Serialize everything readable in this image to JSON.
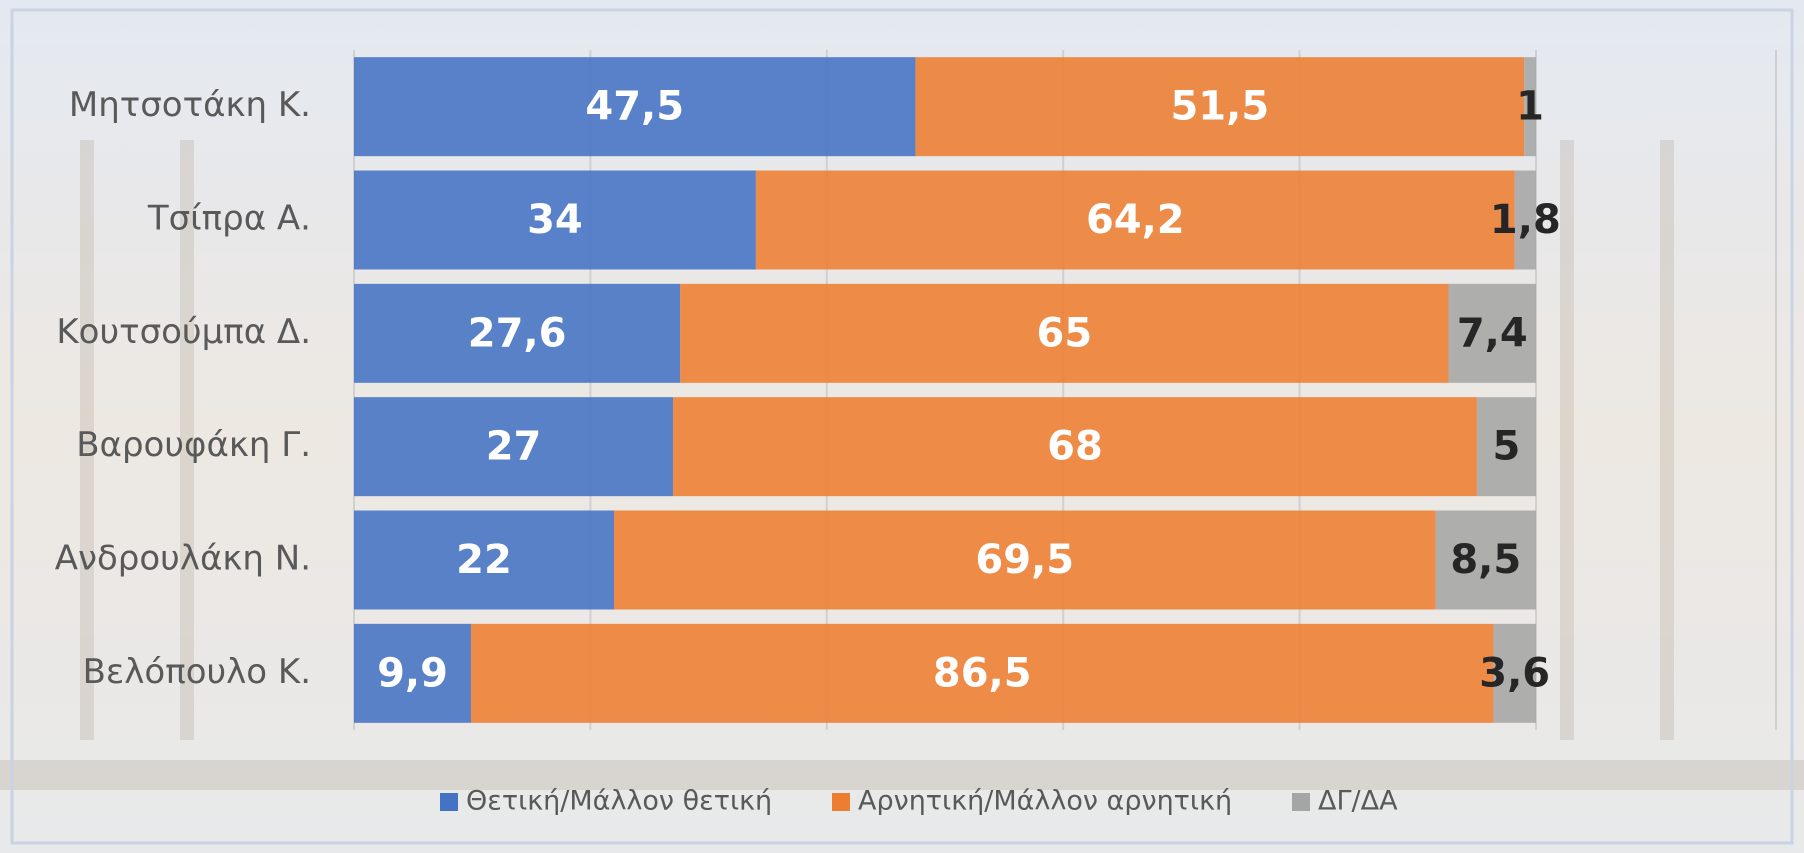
{
  "chart_data": {
    "type": "stacked-bar-horizontal",
    "categories": [
      "Μητσοτάκη Κ.",
      "Τσίπρα Α.",
      "Κουτσούμπα Δ.",
      "Βαρουφάκη Γ.",
      "Ανδρουλάκη Ν.",
      "Βελόπουλο Κ."
    ],
    "series": [
      {
        "name": "Θετική/Μάλλον θετική",
        "color": "#4472c4",
        "values": [
          47.5,
          34,
          27.6,
          27,
          22,
          9.9
        ],
        "value_labels": [
          "47,5",
          "34",
          "27,6",
          "27",
          "22",
          "9,9"
        ]
      },
      {
        "name": "Αρνητική/Μάλλον αρνητική",
        "color": "#ed7d31",
        "values": [
          51.5,
          64.2,
          65,
          68,
          69.5,
          86.5
        ],
        "value_labels": [
          "51,5",
          "64,2",
          "65",
          "68",
          "69,5",
          "86,5"
        ]
      },
      {
        "name": "ΔΓ/ΔΑ",
        "color": "#a5a5a5",
        "values": [
          1,
          1.8,
          7.4,
          5,
          8.5,
          3.6
        ],
        "value_labels": [
          "1",
          "1,8",
          "7,4",
          "5",
          "8,5",
          "3,6"
        ]
      }
    ],
    "xlim": [
      0,
      100
    ],
    "xticks": [
      0,
      20,
      40,
      60,
      80,
      100
    ],
    "grid": true,
    "legend": "bottom"
  }
}
